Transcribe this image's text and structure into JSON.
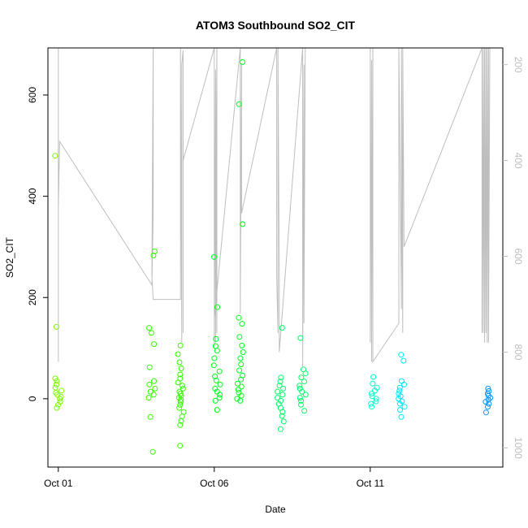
{
  "chart_data": {
    "type": "scatter",
    "title": "ATOM3 Southbound SO2_CIT",
    "xlabel": "Date",
    "ylabel": "SO2_CIT",
    "ylim": [
      -135,
      693
    ],
    "y_ticks": [
      0,
      200,
      400,
      600
    ],
    "x_ticks": [
      {
        "label": "Oct 01",
        "value": "2017-10-01"
      },
      {
        "label": "Oct 06",
        "value": "2017-10-06"
      },
      {
        "label": "Oct 11",
        "value": "2017-10-11"
      }
    ],
    "xlim": [
      "2017-09-30T16:00",
      "2017-10-15T06:00"
    ],
    "y2lim": [
      1040,
      165
    ],
    "y2_ticks": [
      200,
      400,
      600,
      800,
      1000
    ],
    "y2_color": "#bebebe",
    "grid": false,
    "series": [
      {
        "color": "#7cfc00",
        "points": [
          {
            "x": "2017-10-01T00:00",
            "y": 480
          },
          {
            "x": "2017-10-01T00:00",
            "y": 142
          },
          {
            "x": "2017-10-01T00:00",
            "y": 40
          },
          {
            "x": "2017-10-01T00:00",
            "y": 35
          },
          {
            "x": "2017-10-01T00:00",
            "y": 28
          },
          {
            "x": "2017-10-01T00:00",
            "y": 22
          },
          {
            "x": "2017-10-01T00:00",
            "y": 16
          },
          {
            "x": "2017-10-01T00:00",
            "y": 12
          },
          {
            "x": "2017-10-01T00:00",
            "y": 8
          },
          {
            "x": "2017-10-01T00:00",
            "y": 4
          },
          {
            "x": "2017-10-01T00:00",
            "y": 0
          },
          {
            "x": "2017-10-01T00:00",
            "y": -6
          },
          {
            "x": "2017-10-01T00:00",
            "y": -12
          },
          {
            "x": "2017-10-01T00:00",
            "y": -18
          }
        ]
      },
      {
        "color": "#32ff00",
        "points": [
          {
            "x": "2017-10-04T00:00",
            "y": 291
          },
          {
            "x": "2017-10-04T00:00",
            "y": 283
          },
          {
            "x": "2017-10-04T00:00",
            "y": 140
          },
          {
            "x": "2017-10-04T00:00",
            "y": 130
          },
          {
            "x": "2017-10-04T00:00",
            "y": 108
          },
          {
            "x": "2017-10-04T00:00",
            "y": 62
          },
          {
            "x": "2017-10-04T00:00",
            "y": 35
          },
          {
            "x": "2017-10-04T00:00",
            "y": 28
          },
          {
            "x": "2017-10-04T00:00",
            "y": 20
          },
          {
            "x": "2017-10-04T00:00",
            "y": 14
          },
          {
            "x": "2017-10-04T00:00",
            "y": 8
          },
          {
            "x": "2017-10-04T00:00",
            "y": 2
          },
          {
            "x": "2017-10-04T00:00",
            "y": -36
          },
          {
            "x": "2017-10-04T00:00",
            "y": -105
          },
          {
            "x": "2017-10-04T22:00",
            "y": 105
          },
          {
            "x": "2017-10-04T22:00",
            "y": 88
          },
          {
            "x": "2017-10-04T22:00",
            "y": 72
          },
          {
            "x": "2017-10-04T22:00",
            "y": 60
          },
          {
            "x": "2017-10-04T22:00",
            "y": 48
          },
          {
            "x": "2017-10-04T22:00",
            "y": 40
          },
          {
            "x": "2017-10-04T22:00",
            "y": 32
          },
          {
            "x": "2017-10-04T22:00",
            "y": 26
          },
          {
            "x": "2017-10-04T22:00",
            "y": 20
          },
          {
            "x": "2017-10-04T22:00",
            "y": 14
          },
          {
            "x": "2017-10-04T22:00",
            "y": 10
          },
          {
            "x": "2017-10-04T22:00",
            "y": 6
          },
          {
            "x": "2017-10-04T22:00",
            "y": 2
          },
          {
            "x": "2017-10-04T22:00",
            "y": -2
          },
          {
            "x": "2017-10-04T22:00",
            "y": -6
          },
          {
            "x": "2017-10-04T22:00",
            "y": -12
          },
          {
            "x": "2017-10-04T22:00",
            "y": -18
          },
          {
            "x": "2017-10-04T22:00",
            "y": -26
          },
          {
            "x": "2017-10-04T22:00",
            "y": -35
          },
          {
            "x": "2017-10-04T22:00",
            "y": -44
          },
          {
            "x": "2017-10-04T22:00",
            "y": -52
          },
          {
            "x": "2017-10-04T22:00",
            "y": -93
          }
        ]
      },
      {
        "color": "#00ff1a",
        "points": [
          {
            "x": "2017-10-06T02:00",
            "y": 280
          },
          {
            "x": "2017-10-06T02:00",
            "y": 181
          },
          {
            "x": "2017-10-06T02:00",
            "y": 118
          },
          {
            "x": "2017-10-06T02:00",
            "y": 104
          },
          {
            "x": "2017-10-06T02:00",
            "y": 95
          },
          {
            "x": "2017-10-06T02:00",
            "y": 80
          },
          {
            "x": "2017-10-06T02:00",
            "y": 66
          },
          {
            "x": "2017-10-06T02:00",
            "y": 54
          },
          {
            "x": "2017-10-06T02:00",
            "y": 44
          },
          {
            "x": "2017-10-06T02:00",
            "y": 36
          },
          {
            "x": "2017-10-06T02:00",
            "y": 28
          },
          {
            "x": "2017-10-06T02:00",
            "y": 20
          },
          {
            "x": "2017-10-06T02:00",
            "y": 14
          },
          {
            "x": "2017-10-06T02:00",
            "y": 8
          },
          {
            "x": "2017-10-06T02:00",
            "y": 2
          },
          {
            "x": "2017-10-06T02:00",
            "y": -4
          },
          {
            "x": "2017-10-06T02:00",
            "y": -22
          },
          {
            "x": "2017-10-06T20:00",
            "y": 665
          },
          {
            "x": "2017-10-06T20:00",
            "y": 582
          },
          {
            "x": "2017-10-06T20:00",
            "y": 345
          },
          {
            "x": "2017-10-06T20:00",
            "y": 160
          },
          {
            "x": "2017-10-06T20:00",
            "y": 148
          },
          {
            "x": "2017-10-06T20:00",
            "y": 122
          },
          {
            "x": "2017-10-06T20:00",
            "y": 105
          },
          {
            "x": "2017-10-06T20:00",
            "y": 92
          },
          {
            "x": "2017-10-06T20:00",
            "y": 80
          },
          {
            "x": "2017-10-06T20:00",
            "y": 68
          },
          {
            "x": "2017-10-06T20:00",
            "y": 56
          },
          {
            "x": "2017-10-06T20:00",
            "y": 46
          },
          {
            "x": "2017-10-06T20:00",
            "y": 38
          },
          {
            "x": "2017-10-06T20:00",
            "y": 30
          },
          {
            "x": "2017-10-06T20:00",
            "y": 24
          },
          {
            "x": "2017-10-06T20:00",
            "y": 18
          },
          {
            "x": "2017-10-06T20:00",
            "y": 12
          },
          {
            "x": "2017-10-06T20:00",
            "y": 6
          },
          {
            "x": "2017-10-06T20:00",
            "y": 0
          },
          {
            "x": "2017-10-06T20:00",
            "y": -4
          }
        ]
      },
      {
        "color": "#00ff66",
        "points": [
          {
            "x": "2017-10-08T03:00",
            "y": 42
          },
          {
            "x": "2017-10-08T03:00",
            "y": 34
          },
          {
            "x": "2017-10-08T03:00",
            "y": 26
          },
          {
            "x": "2017-10-08T03:00",
            "y": 20
          },
          {
            "x": "2017-10-08T03:00",
            "y": 14
          },
          {
            "x": "2017-10-08T03:00",
            "y": 8
          },
          {
            "x": "2017-10-08T03:00",
            "y": 2
          },
          {
            "x": "2017-10-08T03:00",
            "y": -4
          },
          {
            "x": "2017-10-08T03:00",
            "y": -10
          },
          {
            "x": "2017-10-08T03:00",
            "y": -18
          },
          {
            "x": "2017-10-08T03:00",
            "y": -26
          },
          {
            "x": "2017-10-08T03:00",
            "y": -34
          },
          {
            "x": "2017-10-08T03:00",
            "y": -45
          },
          {
            "x": "2017-10-08T03:00",
            "y": -60
          },
          {
            "x": "2017-10-08T03:00",
            "y": 140
          },
          {
            "x": "2017-10-08T20:00",
            "y": 120
          },
          {
            "x": "2017-10-08T20:00",
            "y": 58
          },
          {
            "x": "2017-10-08T20:00",
            "y": 50
          },
          {
            "x": "2017-10-08T20:00",
            "y": 42
          },
          {
            "x": "2017-10-08T20:00",
            "y": 34
          },
          {
            "x": "2017-10-08T20:00",
            "y": 26
          },
          {
            "x": "2017-10-08T20:00",
            "y": 20
          },
          {
            "x": "2017-10-08T20:00",
            "y": 14
          },
          {
            "x": "2017-10-08T20:00",
            "y": 8
          },
          {
            "x": "2017-10-08T20:00",
            "y": 2
          },
          {
            "x": "2017-10-08T20:00",
            "y": -4
          },
          {
            "x": "2017-10-08T20:00",
            "y": -12
          },
          {
            "x": "2017-10-08T20:00",
            "y": -24
          }
        ]
      },
      {
        "color": "#00ffcc",
        "points": [
          {
            "x": "2017-10-11T03:00",
            "y": 43
          },
          {
            "x": "2017-10-11T03:00",
            "y": 30
          },
          {
            "x": "2017-10-11T03:00",
            "y": 22
          },
          {
            "x": "2017-10-11T03:00",
            "y": 16
          },
          {
            "x": "2017-10-11T03:00",
            "y": 10
          },
          {
            "x": "2017-10-11T03:00",
            "y": 5
          },
          {
            "x": "2017-10-11T03:00",
            "y": 0
          },
          {
            "x": "2017-10-11T03:00",
            "y": -5
          },
          {
            "x": "2017-10-11T03:00",
            "y": -10
          },
          {
            "x": "2017-10-11T03:00",
            "y": -16
          }
        ]
      },
      {
        "color": "#00e5ff",
        "points": [
          {
            "x": "2017-10-12T00:00",
            "y": 87
          },
          {
            "x": "2017-10-12T00:00",
            "y": 75
          },
          {
            "x": "2017-10-12T00:00",
            "y": 35
          },
          {
            "x": "2017-10-12T00:00",
            "y": 28
          },
          {
            "x": "2017-10-12T00:00",
            "y": 22
          },
          {
            "x": "2017-10-12T00:00",
            "y": 16
          },
          {
            "x": "2017-10-12T00:00",
            "y": 10
          },
          {
            "x": "2017-10-12T00:00",
            "y": 5
          },
          {
            "x": "2017-10-12T00:00",
            "y": 0
          },
          {
            "x": "2017-10-12T00:00",
            "y": -5
          },
          {
            "x": "2017-10-12T00:00",
            "y": -10
          },
          {
            "x": "2017-10-12T00:00",
            "y": -16
          },
          {
            "x": "2017-10-12T00:00",
            "y": -22
          },
          {
            "x": "2017-10-12T00:00",
            "y": -36
          }
        ]
      },
      {
        "color": "#0096ff",
        "points": [
          {
            "x": "2017-10-14T18:00",
            "y": 20
          },
          {
            "x": "2017-10-14T18:00",
            "y": 15
          },
          {
            "x": "2017-10-14T18:00",
            "y": 10
          },
          {
            "x": "2017-10-14T18:00",
            "y": 6
          },
          {
            "x": "2017-10-14T18:00",
            "y": 2
          },
          {
            "x": "2017-10-14T18:00",
            "y": -2
          },
          {
            "x": "2017-10-14T18:00",
            "y": -6
          },
          {
            "x": "2017-10-14T18:00",
            "y": -10
          },
          {
            "x": "2017-10-14T18:00",
            "y": -16
          },
          {
            "x": "2017-10-14T18:00",
            "y": -27
          }
        ]
      }
    ],
    "secondary_line": {
      "color": "#bebebe",
      "axis": "right",
      "x": [
        "2017-10-01T00:00",
        "2017-10-01T00:00",
        "2017-10-01T00:00",
        "2017-10-01T01:00",
        "2017-10-04T00:00",
        "2017-10-04T01:00",
        "2017-10-04T01:00",
        "2017-10-04T00:00",
        "2017-10-04T01:00",
        "2017-10-04T22:00",
        "2017-10-04T22:00",
        "2017-10-04T23:00",
        "2017-10-04T23:00",
        "2017-10-05T00:00",
        "2017-10-05T00:00",
        "2017-10-05T00:00",
        "2017-10-06T00:00",
        "2017-10-06T00:00",
        "2017-10-06T01:00",
        "2017-10-06T01:00",
        "2017-10-06T02:00",
        "2017-10-06T02:00",
        "2017-10-06T01:00",
        "2017-10-06T00:00",
        "2017-10-06T20:00",
        "2017-10-06T20:00",
        "2017-10-06T20:00",
        "2017-10-06T21:00",
        "2017-10-06T21:00",
        "2017-10-06T21:00",
        "2017-10-08T00:00",
        "2017-10-08T00:00",
        "2017-10-08T01:00",
        "2017-10-08T01:00",
        "2017-10-08T02:00",
        "2017-10-08T02:00",
        "2017-10-08T20:00",
        "2017-10-08T20:00",
        "2017-10-08T21:00",
        "2017-10-08T21:00",
        "2017-10-08T22:00",
        "2017-10-11T00:00",
        "2017-10-11T00:00",
        "2017-10-11T01:00",
        "2017-10-11T01:00",
        "2017-10-11T02:00",
        "2017-10-11T02:00",
        "2017-10-11T22:00",
        "2017-10-11T22:00",
        "2017-10-12T00:00",
        "2017-10-12T00:00",
        "2017-10-12T01:00",
        "2017-10-12T01:00",
        "2017-10-12T02:00",
        "2017-10-14T14:00",
        "2017-10-14T14:00",
        "2017-10-14T15:00",
        "2017-10-14T15:00",
        "2017-10-14T16:00",
        "2017-10-14T16:00",
        "2017-10-14T17:00",
        "2017-10-14T17:00",
        "2017-10-14T18:00",
        "2017-10-14T18:00",
        "2017-10-14T19:00",
        "2017-10-14T19:00",
        "2017-10-14T20:00"
      ],
      "y": [
        165,
        820,
        500,
        360,
        660,
        510,
        165,
        640,
        690,
        690,
        165,
        780,
        200,
        170,
        760,
        400,
        165,
        790,
        210,
        780,
        165,
        760,
        210,
        730,
        165,
        500,
        720,
        200,
        320,
        510,
        165,
        640,
        760,
        165,
        640,
        800,
        165,
        830,
        200,
        740,
        165,
        165,
        780,
        190,
        820,
        165,
        820,
        740,
        165,
        710,
        165,
        760,
        165,
        580,
        165,
        760,
        165,
        760,
        165,
        780,
        165,
        760,
        165,
        780,
        165,
        780,
        165
      ]
    }
  }
}
